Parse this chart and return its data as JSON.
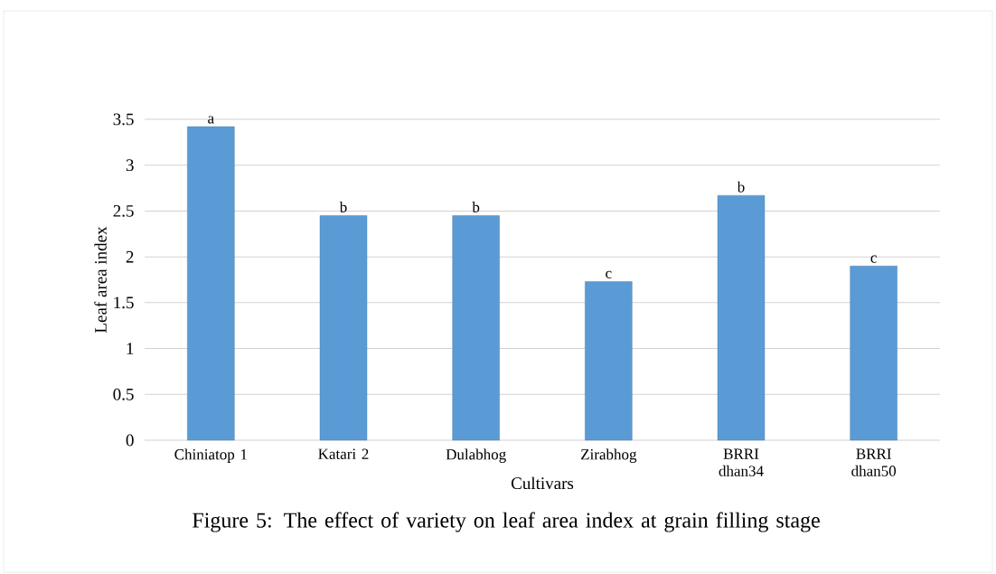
{
  "chart_data": {
    "type": "bar",
    "title": "Figure 5: The effect of variety on leaf area index at grain filling stage",
    "xlabel": "Cultivars",
    "ylabel": "Leaf area index",
    "categories": [
      "Chiniatop 1",
      "Katari 2",
      "Dulabhog",
      "Zirabhog",
      "BRRI dhan34",
      "BRRI dhan50"
    ],
    "values": [
      3.42,
      2.45,
      2.45,
      1.73,
      2.67,
      1.9
    ],
    "value_labels": [
      "a",
      "b",
      "b",
      "c",
      "b",
      "c"
    ],
    "color": "#5b9bd5",
    "ylim": [
      0,
      3.5
    ],
    "yticks": [
      0,
      0.5,
      1,
      1.5,
      2,
      2.5,
      3,
      3.5
    ],
    "grid": "y"
  }
}
